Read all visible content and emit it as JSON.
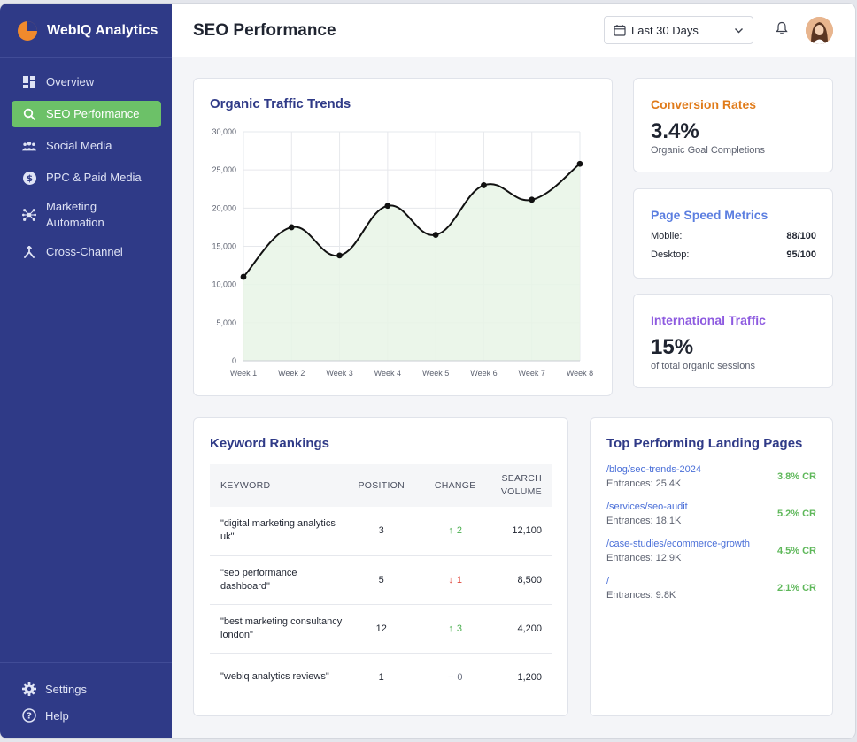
{
  "brand": {
    "name": "WebIQ Analytics"
  },
  "sidebar": {
    "items": [
      {
        "label": "Overview",
        "icon": "grid-icon"
      },
      {
        "label": "SEO Performance",
        "icon": "search-icon",
        "active": true
      },
      {
        "label": "Social Media",
        "icon": "users-icon"
      },
      {
        "label": "PPC & Paid Media",
        "icon": "dollar-icon"
      },
      {
        "label": "Marketing Automation",
        "icon": "network-icon"
      },
      {
        "label": "Cross-Channel",
        "icon": "branch-icon"
      }
    ],
    "bottom": [
      {
        "label": "Settings",
        "icon": "gear-icon"
      },
      {
        "label": "Help",
        "icon": "question-icon"
      }
    ]
  },
  "header": {
    "title": "SEO Performance",
    "date_range": "Last 30 Days"
  },
  "colors": {
    "sidebar": "#2f3a87",
    "active": "#6cc168",
    "conversion_title": "#e07b1a",
    "speed_title": "#5b7ee0",
    "intl_title": "#8d5ae0",
    "positive": "#4caf50",
    "negative": "#e04a3f"
  },
  "chart_card": {
    "title": "Organic Traffic Trends"
  },
  "chart_data": {
    "type": "line",
    "categories": [
      "Week 1",
      "Week 2",
      "Week 3",
      "Week 4",
      "Week 5",
      "Week 6",
      "Week 7",
      "Week 8"
    ],
    "values": [
      11000,
      17500,
      13800,
      20300,
      16500,
      23000,
      21100,
      25800
    ],
    "ylim": [
      0,
      30000
    ],
    "yticks": [
      0,
      5000,
      10000,
      15000,
      20000,
      25000,
      30000
    ],
    "ytick_labels": [
      "0",
      "5,000",
      "10,000",
      "15,000",
      "20,000",
      "25,000",
      "30,000"
    ],
    "grid": true,
    "fill": true
  },
  "conversion": {
    "title": "Conversion Rates",
    "value": "3.4%",
    "subtitle": "Organic Goal Completions"
  },
  "page_speed": {
    "title": "Page Speed Metrics",
    "rows": [
      {
        "label": "Mobile:",
        "value": "88/100"
      },
      {
        "label": "Desktop:",
        "value": "95/100"
      }
    ]
  },
  "international": {
    "title": "International Traffic",
    "value": "15%",
    "subtitle": "of total organic sessions"
  },
  "keywords": {
    "title": "Keyword Rankings",
    "headers": [
      "KEYWORD",
      "POSITION",
      "CHANGE",
      "SEARCH VOLUME"
    ],
    "rows": [
      {
        "keyword": "\"digital marketing analytics uk\"",
        "position": "3",
        "change": "2",
        "direction": "up",
        "volume": "12,100"
      },
      {
        "keyword": "\"seo performance dashboard\"",
        "position": "5",
        "change": "1",
        "direction": "down",
        "volume": "8,500"
      },
      {
        "keyword": "\"best marketing consultancy london\"",
        "position": "12",
        "change": "3",
        "direction": "up",
        "volume": "4,200"
      },
      {
        "keyword": "\"webiq analytics reviews\"",
        "position": "1",
        "change": "0",
        "direction": "flat",
        "volume": "1,200"
      }
    ]
  },
  "landing_pages": {
    "title": "Top Performing Landing Pages",
    "items": [
      {
        "url": "/blog/seo-trends-2024",
        "entrances": "Entrances: 25.4K",
        "cr": "3.8% CR"
      },
      {
        "url": "/services/seo-audit",
        "entrances": "Entrances: 18.1K",
        "cr": "5.2% CR"
      },
      {
        "url": "/case-studies/ecommerce-growth",
        "entrances": "Entrances: 12.9K",
        "cr": "4.5% CR"
      },
      {
        "url": "/",
        "entrances": "Entrances: 9.8K",
        "cr": "2.1% CR"
      }
    ]
  }
}
